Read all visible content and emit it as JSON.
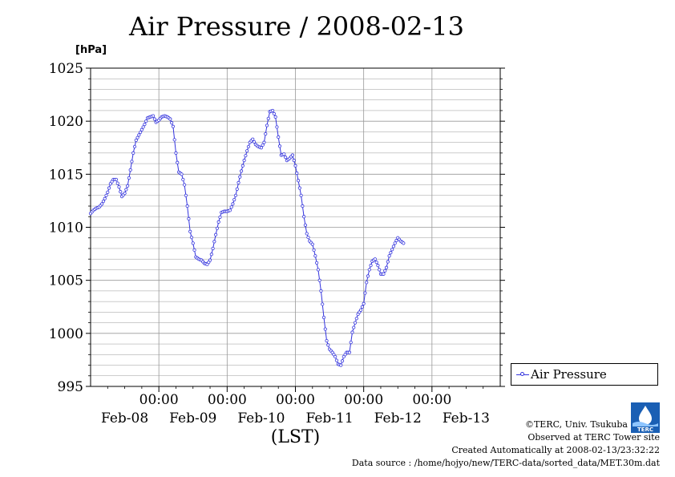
{
  "title": "Air Pressure / 2008-02-13",
  "unit_label": "[hPa]",
  "legend": {
    "label": "Air Pressure"
  },
  "credits": {
    "line1": "©TERC, Univ. Tsukuba",
    "line2": "Observed at TERC Tower site",
    "line3": "Created Automatically at 2008-02-13/23:32:22",
    "line4": "Data source : /home/hojyo/new/TERC-data/sorted_data/MET.30m.dat"
  },
  "logo_text": "TERC",
  "colors": {
    "series": "#3333dd",
    "grid": "#999999"
  },
  "chart_data": {
    "type": "line",
    "title": "Air Pressure / 2008-02-13",
    "ylabel": "[hPa]",
    "xlabel": "(LST)",
    "ylim": [
      995,
      1025
    ],
    "y_ticks": [
      995,
      1000,
      1005,
      1010,
      1015,
      1020,
      1025
    ],
    "xlim_hours": [
      0,
      144
    ],
    "x_ticks": [
      {
        "hour": 24,
        "time": "00:00",
        "date": "Feb-09"
      },
      {
        "hour": 48,
        "time": "00:00",
        "date": "Feb-10"
      },
      {
        "hour": 72,
        "time": "00:00",
        "date": "Feb-11"
      },
      {
        "hour": 96,
        "time": "00:00",
        "date": "Feb-12"
      },
      {
        "hour": 120,
        "time": "00:00",
        "date": "Feb-13"
      }
    ],
    "day_labels": [
      {
        "hour": 12,
        "label": "Feb-08"
      },
      {
        "hour": 36,
        "label": "Feb-09"
      },
      {
        "hour": 60,
        "label": "Feb-10"
      },
      {
        "hour": 84,
        "label": "Feb-11"
      },
      {
        "hour": 108,
        "label": "Feb-12"
      },
      {
        "hour": 132,
        "label": "Feb-13"
      }
    ],
    "grid": true,
    "legend_position": "right",
    "series": [
      {
        "name": "Air Pressure",
        "points": [
          [
            0,
            1011.3
          ],
          [
            1,
            1011.6
          ],
          [
            2,
            1011.8
          ],
          [
            3,
            1011.9
          ],
          [
            4,
            1012.2
          ],
          [
            5,
            1012.7
          ],
          [
            6,
            1013.3
          ],
          [
            7,
            1014.1
          ],
          [
            8,
            1014.5
          ],
          [
            9,
            1014.5
          ],
          [
            10,
            1013.8
          ],
          [
            11,
            1012.9
          ],
          [
            12,
            1013.2
          ],
          [
            13,
            1013.9
          ],
          [
            14,
            1015.4
          ],
          [
            15,
            1017.0
          ],
          [
            16,
            1018.2
          ],
          [
            17,
            1018.7
          ],
          [
            18,
            1019.2
          ],
          [
            19,
            1019.7
          ],
          [
            20,
            1020.3
          ],
          [
            21,
            1020.4
          ],
          [
            22,
            1020.5
          ],
          [
            23,
            1019.9
          ],
          [
            24,
            1020.1
          ],
          [
            25,
            1020.4
          ],
          [
            26,
            1020.5
          ],
          [
            27,
            1020.4
          ],
          [
            28,
            1020.2
          ],
          [
            29,
            1019.5
          ],
          [
            30,
            1017.0
          ],
          [
            31,
            1015.2
          ],
          [
            32,
            1015.0
          ],
          [
            33,
            1014.0
          ],
          [
            34,
            1012.0
          ],
          [
            35,
            1009.6
          ],
          [
            36,
            1008.5
          ],
          [
            37,
            1007.2
          ],
          [
            38,
            1007.0
          ],
          [
            39,
            1006.9
          ],
          [
            40,
            1006.6
          ],
          [
            41,
            1006.5
          ],
          [
            42,
            1006.9
          ],
          [
            43,
            1008.0
          ],
          [
            44,
            1009.3
          ],
          [
            45,
            1010.5
          ],
          [
            46,
            1011.4
          ],
          [
            47,
            1011.5
          ],
          [
            48,
            1011.5
          ],
          [
            49,
            1011.6
          ],
          [
            50,
            1012.2
          ],
          [
            51,
            1013.0
          ],
          [
            52,
            1014.2
          ],
          [
            53,
            1015.3
          ],
          [
            54,
            1016.3
          ],
          [
            55,
            1017.2
          ],
          [
            56,
            1018.0
          ],
          [
            57,
            1018.3
          ],
          [
            58,
            1017.8
          ],
          [
            59,
            1017.6
          ],
          [
            60,
            1017.5
          ],
          [
            61,
            1018.0
          ],
          [
            62,
            1019.6
          ],
          [
            63,
            1020.9
          ],
          [
            64,
            1021.0
          ],
          [
            65,
            1020.4
          ],
          [
            66,
            1018.5
          ],
          [
            67,
            1016.8
          ],
          [
            68,
            1016.9
          ],
          [
            69,
            1016.3
          ],
          [
            70,
            1016.5
          ],
          [
            71,
            1016.8
          ],
          [
            72,
            1015.8
          ],
          [
            73,
            1014.4
          ],
          [
            74,
            1013.0
          ],
          [
            75,
            1011.0
          ],
          [
            76,
            1009.4
          ],
          [
            77,
            1008.7
          ],
          [
            78,
            1008.4
          ],
          [
            79,
            1007.3
          ],
          [
            80,
            1006.0
          ],
          [
            81,
            1004.0
          ],
          [
            82,
            1001.5
          ],
          [
            83,
            999.3
          ],
          [
            84,
            998.5
          ],
          [
            85,
            998.2
          ],
          [
            86,
            997.8
          ],
          [
            87,
            997.1
          ],
          [
            88,
            997.0
          ],
          [
            89,
            997.8
          ],
          [
            90,
            998.2
          ],
          [
            91,
            998.2
          ],
          [
            92,
            1000.1
          ],
          [
            93,
            1001.0
          ],
          [
            94,
            1001.8
          ],
          [
            95,
            1002.2
          ],
          [
            96,
            1002.8
          ],
          [
            97,
            1004.8
          ],
          [
            98,
            1006.0
          ],
          [
            99,
            1006.8
          ],
          [
            100,
            1007.0
          ],
          [
            101,
            1006.4
          ],
          [
            102,
            1005.6
          ],
          [
            103,
            1005.6
          ],
          [
            104,
            1006.2
          ],
          [
            105,
            1007.3
          ],
          [
            106,
            1007.9
          ],
          [
            107,
            1008.5
          ],
          [
            108,
            1009.0
          ],
          [
            109,
            1008.7
          ],
          [
            110,
            1008.5
          ]
        ]
      }
    ]
  }
}
